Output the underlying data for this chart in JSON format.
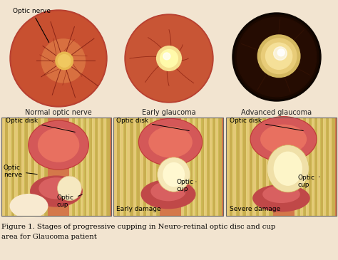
{
  "caption_line1": "Figure 1. Stages of progressive cupping in Neuro-retinal optic disc and cup",
  "caption_line2": "area for Glaucoma patient",
  "middle_labels": [
    "Normal optic nerve",
    "Early glaucoma",
    "Advanced glaucoma"
  ],
  "optic_nerve_label": "Optic nerve",
  "panel1_labels": {
    "disk": "Optic disk",
    "nerve": "Optic\nnerve",
    "cup": "Optic\ncup"
  },
  "panel2_labels": {
    "disk": "Optic disk",
    "cup": "Optic\ncup",
    "damage": "Early damage"
  },
  "panel3_labels": {
    "disk": "Optic disk",
    "cup": "Optic\ncup",
    "damage": "Severe damage"
  },
  "bg_color": "#f2e4d0",
  "fig_width": 4.74,
  "fig_height": 3.65,
  "dpi": 100
}
